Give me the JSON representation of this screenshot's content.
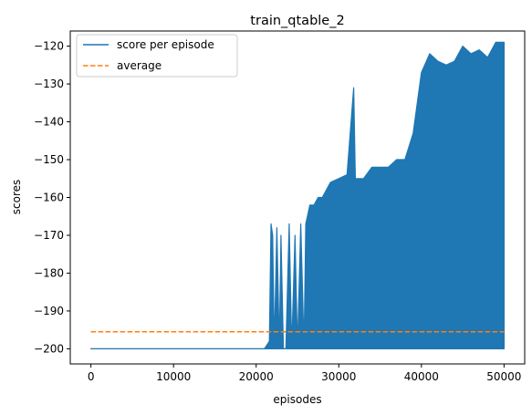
{
  "chart_data": {
    "type": "line",
    "title": "train_qtable_2",
    "xlabel": "episodes",
    "ylabel": "scores",
    "xlim": [
      -2500,
      52500
    ],
    "ylim": [
      -204,
      -116
    ],
    "xticks": [
      0,
      10000,
      20000,
      30000,
      40000,
      50000
    ],
    "yticks": [
      -200,
      -190,
      -180,
      -170,
      -160,
      -150,
      -140,
      -130,
      -120
    ],
    "grid": false,
    "legend_position": "top-left",
    "series": [
      {
        "name": "score per episode",
        "color": "#1f77b4",
        "style": "solid",
        "x": [
          0,
          21000,
          21300,
          21600,
          21800,
          22000,
          22200,
          22500,
          22800,
          23000,
          23300,
          23600,
          24000,
          24300,
          24700,
          25000,
          25400,
          25800,
          26000,
          26500,
          27000,
          27500,
          28000,
          28500,
          29000,
          30000,
          31000,
          31800,
          32000,
          33000,
          34000,
          35000,
          36000,
          37000,
          38000,
          39000,
          40000,
          41000,
          42000,
          43000,
          44000,
          45000,
          46000,
          47000,
          48000,
          49000,
          50000
        ],
        "min": [
          -200,
          -200,
          -200,
          -200,
          -200,
          -200,
          -200,
          -200,
          -200,
          -200,
          -200,
          -200,
          -200,
          -200,
          -200,
          -200,
          -200,
          -200,
          -200,
          -200,
          -200,
          -200,
          -200,
          -200,
          -200,
          -200,
          -200,
          -200,
          -200,
          -200,
          -200,
          -200,
          -200,
          -200,
          -200,
          -200,
          -200,
          -200,
          -200,
          -200,
          -200,
          -200,
          -200,
          -200,
          -200,
          -200,
          -200
        ],
        "max": [
          -200,
          -200,
          -199,
          -198,
          -167,
          -170,
          -200,
          -168,
          -200,
          -170,
          -200,
          -200,
          -167,
          -200,
          -170,
          -200,
          -167,
          -200,
          -167,
          -162,
          -162,
          -160,
          -160,
          -158,
          -156,
          -155,
          -154,
          -131,
          -155,
          -155,
          -152,
          -152,
          -152,
          -150,
          -150,
          -143,
          -127,
          -122,
          -124,
          -125,
          -124,
          -120,
          -122,
          -121,
          -123,
          -119,
          -119
        ]
      },
      {
        "name": "average",
        "color": "#ff7f0e",
        "style": "dashed",
        "x": [
          0,
          50000
        ],
        "y": [
          -195.5,
          -195.5
        ]
      }
    ]
  }
}
